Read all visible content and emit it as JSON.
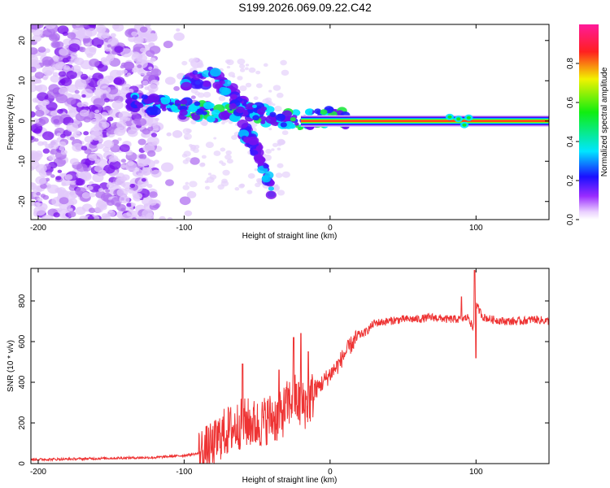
{
  "title": "S199.2026.069.09.22.C42",
  "chart_data": [
    {
      "type": "heatmap",
      "xlabel": "Height of straight line (km)",
      "ylabel": "Frequency (Hz)",
      "xlim": [
        -205,
        150
      ],
      "ylim": [
        -24.5,
        24
      ],
      "xticks": [
        -200,
        -100,
        0,
        100
      ],
      "xtick_labels": [
        "-200",
        "-100",
        "0",
        "100"
      ],
      "yticks": [
        20,
        10,
        0,
        -10,
        -20
      ],
      "ytick_labels": [
        "20",
        "10",
        "0",
        "-10",
        "-20"
      ],
      "colorbar": {
        "label": "Normalized spectral amplitude",
        "range": [
          0,
          1
        ],
        "ticks": [
          0.0,
          0.2,
          0.4,
          0.6,
          0.8
        ],
        "tick_labels": [
          "0.0",
          "0.2",
          "0.4",
          "0.6",
          "0.8"
        ]
      },
      "features": [
        {
          "name": "scattered noise",
          "x_range": [
            -205,
            -90
          ],
          "freq_range": [
            -24.5,
            24
          ],
          "amplitude": 0.1
        },
        {
          "name": "upper multipath branch",
          "x": [
            -100,
            -80,
            -65,
            -55
          ],
          "freq": [
            10,
            11,
            6,
            3
          ],
          "amplitude": 0.3
        },
        {
          "name": "central carrier track",
          "x": [
            -138,
            -110,
            -80,
            -60,
            -40,
            -20,
            0,
            20,
            150
          ],
          "freq": [
            4.5,
            3.5,
            2,
            3,
            1,
            0,
            1,
            0,
            0
          ],
          "amplitude": 0.9
        },
        {
          "name": "lower multipath branch",
          "x": [
            -60,
            -50,
            -45,
            -40
          ],
          "freq": [
            -2,
            -7,
            -12,
            -17
          ],
          "amplitude": 0.15
        }
      ]
    },
    {
      "type": "line",
      "xlabel": "Height of straight line (km)",
      "ylabel": "SNR (10 * v/v)",
      "xlim": [
        -205,
        150
      ],
      "ylim": [
        0,
        960
      ],
      "xticks": [
        -200,
        -100,
        0,
        100
      ],
      "xtick_labels": [
        "-200",
        "-100",
        "0",
        "100"
      ],
      "yticks": [
        0,
        200,
        400,
        600,
        800
      ],
      "ytick_labels": [
        "0",
        "200",
        "400",
        "600",
        "800"
      ],
      "color": "#ee3333",
      "series": [
        {
          "name": "SNR",
          "x": [
            -205,
            -180,
            -160,
            -140,
            -120,
            -100,
            -90,
            -80,
            -75,
            -70,
            -65,
            -60,
            -55,
            -50,
            -45,
            -40,
            -35,
            -30,
            -25,
            -20,
            -15,
            -10,
            -5,
            0,
            5,
            10,
            15,
            20,
            25,
            30,
            40,
            50,
            60,
            70,
            80,
            90,
            95,
            98,
            100,
            105,
            110,
            120,
            130,
            140,
            150
          ],
          "values": [
            20,
            22,
            25,
            28,
            30,
            40,
            50,
            80,
            140,
            160,
            180,
            200,
            200,
            190,
            210,
            230,
            220,
            280,
            330,
            280,
            300,
            360,
            400,
            440,
            480,
            540,
            590,
            630,
            650,
            690,
            700,
            710,
            710,
            720,
            710,
            710,
            720,
            660,
            780,
            720,
            710,
            700,
            700,
            710,
            700
          ]
        }
      ],
      "spikes": [
        {
          "x": -60,
          "value": 490
        },
        {
          "x": -35,
          "value": 460
        },
        {
          "x": -25,
          "value": 620
        },
        {
          "x": -20,
          "value": 640
        },
        {
          "x": -15,
          "value": 550
        },
        {
          "x": 90,
          "value": 820
        },
        {
          "x": 99,
          "value": 950
        },
        {
          "x": 100,
          "value": 520
        }
      ]
    }
  ]
}
